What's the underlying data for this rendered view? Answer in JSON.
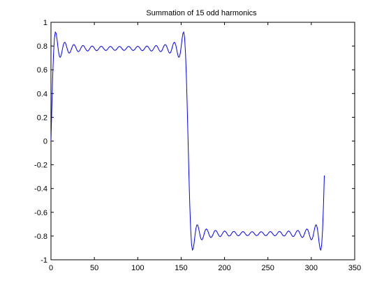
{
  "chart_data": {
    "type": "line",
    "title": "Summation of 15 odd harmonics",
    "xlabel": "",
    "ylabel": "",
    "xlim": [
      0,
      350
    ],
    "ylim": [
      -1,
      1
    ],
    "x_ticks": [
      0,
      50,
      100,
      150,
      200,
      250,
      300,
      350
    ],
    "y_ticks": [
      -1,
      -0.8,
      -0.6,
      -0.4,
      -0.2,
      0,
      0.2,
      0.4,
      0.6,
      0.8,
      1
    ],
    "x_tick_labels": [
      "0",
      "50",
      "100",
      "150",
      "200",
      "250",
      "300",
      "350"
    ],
    "y_tick_labels": [
      "-1",
      "-0.8",
      "-0.6",
      "-0.4",
      "-0.2",
      "0",
      "0.2",
      "0.4",
      "0.6",
      "0.8",
      "1"
    ],
    "grid": false,
    "line_color": "#0000ff",
    "series": [
      {
        "x_start": 0,
        "x_end": 315,
        "num_points": 316,
        "period": 316,
        "harmonics": 15,
        "amplitude": 0.78,
        "values_at": {
          "0": 0,
          "5": 0.93,
          "50": 0.78,
          "152": 0.93,
          "158": 0,
          "165": -0.93,
          "250": -0.78,
          "310": -0.93,
          "315": -0.05
        }
      }
    ]
  }
}
